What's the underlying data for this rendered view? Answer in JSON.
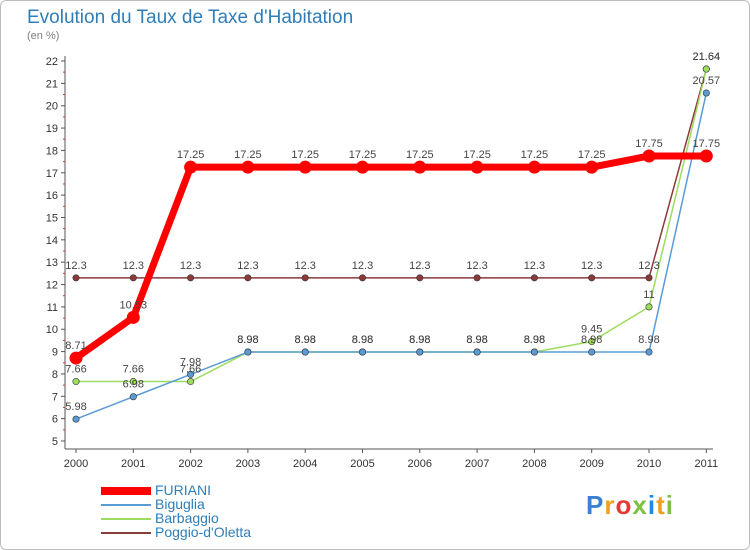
{
  "chart_data": {
    "type": "line",
    "title": "Evolution du Taux de Taxe d'Habitation",
    "subtitle": "(en %)",
    "xlabel": "",
    "ylabel": "",
    "x": [
      "2000",
      "2001",
      "2002",
      "2003",
      "2004",
      "2005",
      "2006",
      "2007",
      "2008",
      "2009",
      "2010",
      "2011"
    ],
    "ylim": [
      5,
      22
    ],
    "yticks": [
      5,
      6,
      7,
      8,
      9,
      10,
      11,
      12,
      13,
      14,
      15,
      16,
      17,
      18,
      19,
      20,
      21,
      22
    ],
    "grid": false,
    "legend_position": "bottom-left",
    "series": [
      {
        "name": "FURIANI",
        "color": "#ff0000",
        "values": [
          8.71,
          10.53,
          17.25,
          17.25,
          17.25,
          17.25,
          17.25,
          17.25,
          17.25,
          17.25,
          17.75,
          17.75
        ],
        "labels": [
          "8.71",
          "10.53",
          "17.25",
          "17.25",
          "17.25",
          "17.25",
          "17.25",
          "17.25",
          "17.25",
          "17.25",
          "17.75",
          "17.75"
        ]
      },
      {
        "name": "Biguglia",
        "color": "#5b9bd5",
        "values": [
          5.98,
          6.98,
          7.98,
          8.98,
          8.98,
          8.98,
          8.98,
          8.98,
          8.98,
          8.98,
          8.98,
          20.57
        ],
        "labels": [
          "5.98",
          "6.98",
          "7.98",
          "8.98",
          "8.98",
          "8.98",
          "8.98",
          "8.98",
          "8.98",
          "8.98",
          "8.98",
          "20.57"
        ]
      },
      {
        "name": "Barbaggio",
        "color": "#9ddc5e",
        "values": [
          7.66,
          7.66,
          7.66,
          8.98,
          8.98,
          8.98,
          8.98,
          8.98,
          8.98,
          9.45,
          11,
          21.64
        ],
        "labels": [
          "7.66",
          "7.66",
          "7.66",
          "8.98",
          "8.98",
          "8.98",
          "8.98",
          "8.98",
          "8.98",
          "9.45",
          "11",
          "21.64"
        ]
      },
      {
        "name": "Poggio-d'Oletta",
        "color": "#8b3a3a",
        "values": [
          12.3,
          12.3,
          12.3,
          12.3,
          12.3,
          12.3,
          12.3,
          12.3,
          12.3,
          12.3,
          12.3,
          21.64
        ],
        "labels": [
          "12.3",
          "12.3",
          "12.3",
          "12.3",
          "12.3",
          "12.3",
          "12.3",
          "12.3",
          "12.3",
          "12.3",
          "12.3",
          "21.64"
        ]
      }
    ]
  },
  "brand": {
    "letters": [
      "P",
      "r",
      "o",
      "x",
      "i",
      "t",
      "i"
    ],
    "colors": [
      "#3a7fd0",
      "#f0a020",
      "#e53935",
      "#7cc242",
      "#1e88e5",
      "#f0a020",
      "#7cc242"
    ]
  }
}
